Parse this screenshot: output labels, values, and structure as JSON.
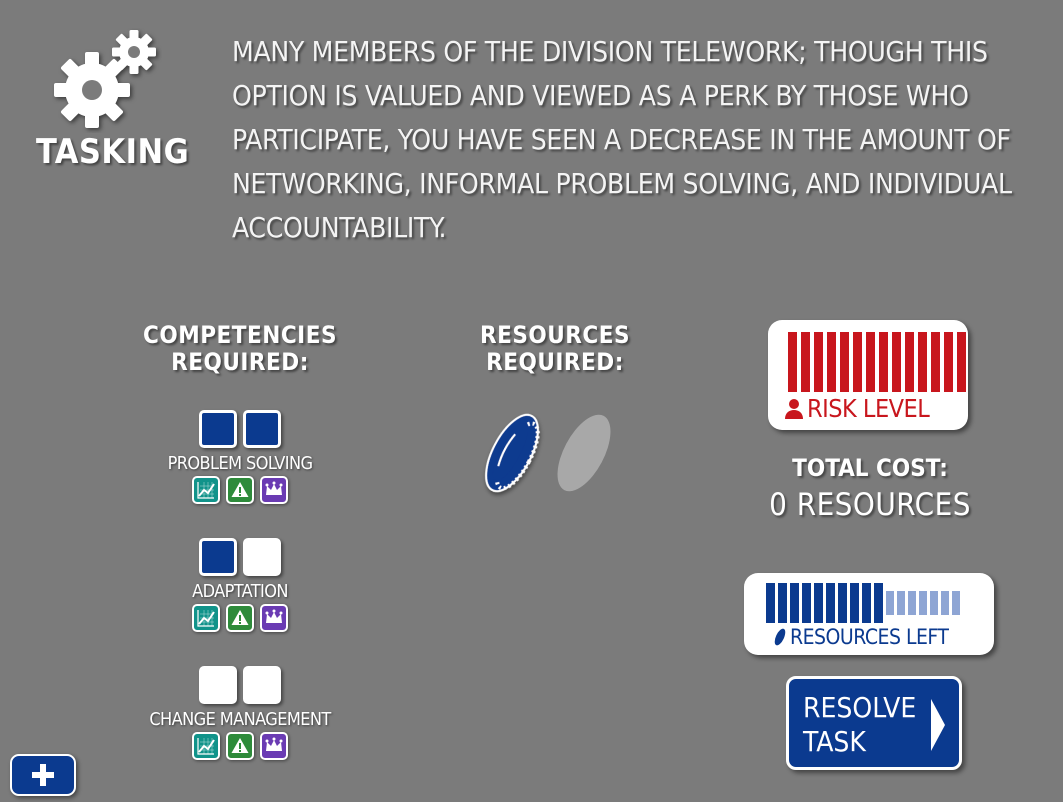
{
  "header": {
    "label": "TASKING",
    "icon": "gears-icon",
    "description": "MANY MEMBERS OF THE DIVISION TELEWORK; THOUGH THIS OPTION IS VALUED AND VIEWED AS A PERK BY THOSE WHO PARTICIPATE, YOU HAVE SEEN A DECREASE IN THE AMOUNT OF NETWORKING, INFORMAL PROBLEM SOLVING, AND INDIVIDUAL ACCOUNTABILITY."
  },
  "competencies": {
    "heading_line1": "COMPETENCIES",
    "heading_line2": "REQUIRED:",
    "items": [
      {
        "name": "PROBLEM SOLVING",
        "slots_filled": 2,
        "slots_total": 2
      },
      {
        "name": "ADAPTATION",
        "slots_filled": 1,
        "slots_total": 2
      },
      {
        "name": "CHANGE MANAGEMENT",
        "slots_filled": 0,
        "slots_total": 2
      }
    ],
    "badge_icons": [
      "chart-icon",
      "warning-icon",
      "crown-icon"
    ]
  },
  "resources": {
    "heading_line1": "RESOURCES",
    "heading_line2": "REQUIRED:",
    "coins_filled": 1,
    "coins_total": 2
  },
  "risk": {
    "label": "RISK LEVEL",
    "level": 14,
    "max": 14,
    "color": "#c8161d"
  },
  "cost": {
    "label": "TOTAL COST:",
    "value": "0 RESOURCES"
  },
  "resources_left": {
    "label": "RESOURCES LEFT",
    "remaining": 10,
    "total": 17,
    "color": "#0b3a8f"
  },
  "actions": {
    "resolve_label": "RESOLVE\nTASK"
  },
  "colors": {
    "background": "#7b7b7b",
    "accent_blue": "#0b3a8f",
    "teal": "#11938a",
    "green": "#2e8b3b",
    "purple": "#6a3bb3"
  }
}
